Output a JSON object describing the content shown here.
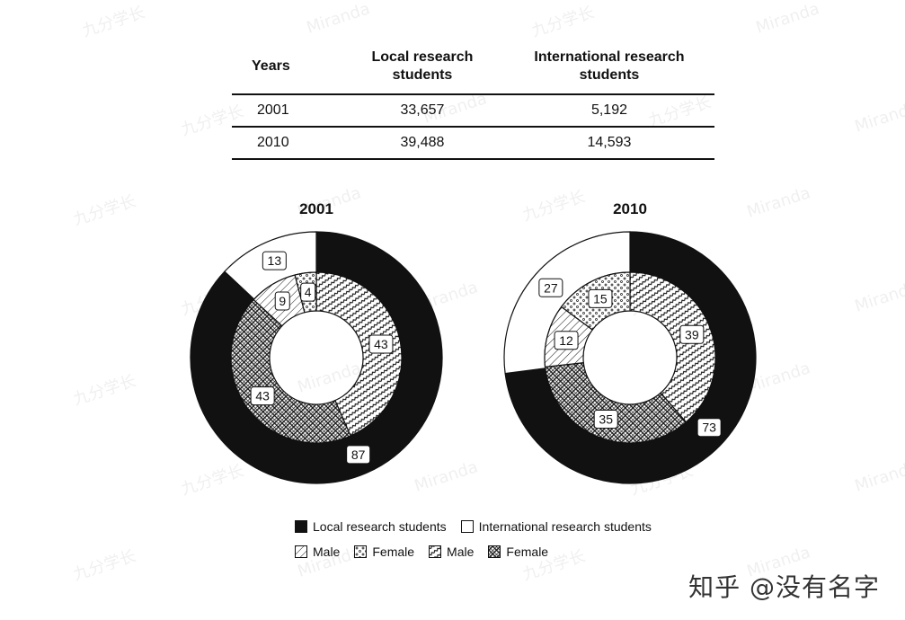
{
  "table": {
    "headers": [
      "Years",
      "Local research students",
      "International research students"
    ],
    "rows": [
      [
        "2001",
        "33,657",
        "5,192"
      ],
      [
        "2010",
        "39,488",
        "14,593"
      ]
    ]
  },
  "chart_data": [
    {
      "type": "pie",
      "title": "2001",
      "outer": [
        {
          "label": "Local research students",
          "value": 87,
          "fill": "black"
        },
        {
          "label": "International research students",
          "value": 13,
          "fill": "white"
        }
      ],
      "inner": [
        {
          "group": "Local",
          "label": "Male",
          "value": 43,
          "fill": "zigzag"
        },
        {
          "group": "Local",
          "label": "Female",
          "value": 43,
          "fill": "diamond"
        },
        {
          "group": "International",
          "label": "Male",
          "value": 9,
          "fill": "diagonal"
        },
        {
          "group": "International",
          "label": "Female",
          "value": 4,
          "fill": "dots"
        }
      ]
    },
    {
      "type": "pie",
      "title": "2010",
      "outer": [
        {
          "label": "Local research students",
          "value": 73,
          "fill": "black"
        },
        {
          "label": "International research students",
          "value": 27,
          "fill": "white"
        }
      ],
      "inner": [
        {
          "group": "Local",
          "label": "Male",
          "value": 39,
          "fill": "zigzag"
        },
        {
          "group": "Local",
          "label": "Female",
          "value": 35,
          "fill": "diamond"
        },
        {
          "group": "International",
          "label": "Male",
          "value": 12,
          "fill": "diagonal"
        },
        {
          "group": "International",
          "label": "Female",
          "value": 15,
          "fill": "dots"
        }
      ]
    }
  ],
  "legend": {
    "row1": [
      "Local research students",
      "International research students"
    ],
    "row2": [
      "Male",
      "Female",
      "Male",
      "Female"
    ]
  },
  "watermarks": [
    "九分学长",
    "Miranda"
  ],
  "footer": "知乎 @没有名字"
}
